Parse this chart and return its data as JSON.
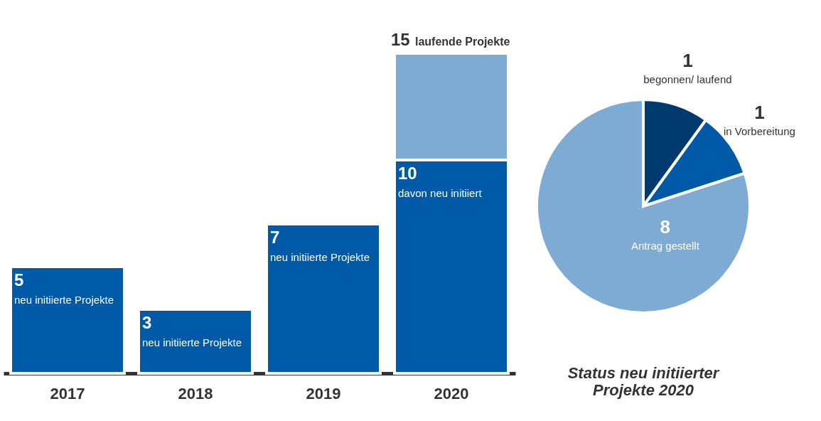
{
  "chart_data": [
    {
      "type": "bar",
      "categories": [
        "2017",
        "2018",
        "2019",
        "2020"
      ],
      "stacked": true,
      "series": [
        {
          "color": "#005aa7",
          "values": [
            5,
            3,
            7,
            10
          ],
          "value_labels": [
            "5",
            "3",
            "7",
            "10"
          ]
        },
        {
          "color": "#7eabd4",
          "values": [
            null,
            null,
            null,
            5
          ]
        }
      ],
      "totals": [
        null,
        null,
        null,
        "15"
      ],
      "annotations": [
        {
          "text": "neu initiierte Projekte",
          "x": "2017",
          "y": 5
        },
        {
          "text": "neu initiierte Projekte",
          "x": "2018",
          "y": 3
        },
        {
          "text": "neu initiierte Projekte",
          "x": "2019",
          "y": 7
        },
        {
          "text": "davon neu initiiert",
          "x": "2020",
          "y": 10
        },
        {
          "text": "laufende Projekte",
          "x": "2020",
          "y": 15
        }
      ]
    },
    {
      "type": "pie",
      "title": "Status neu initiierter Projekte 2020",
      "categories": [
        "begonnen/ laufend",
        "in Vorbereitung",
        "Antrag gestellt"
      ],
      "values": [
        1,
        1,
        8
      ],
      "colors": [
        "#003a6e",
        "#005aa7",
        "#7eabd4"
      ],
      "data_labels": true
    }
  ]
}
